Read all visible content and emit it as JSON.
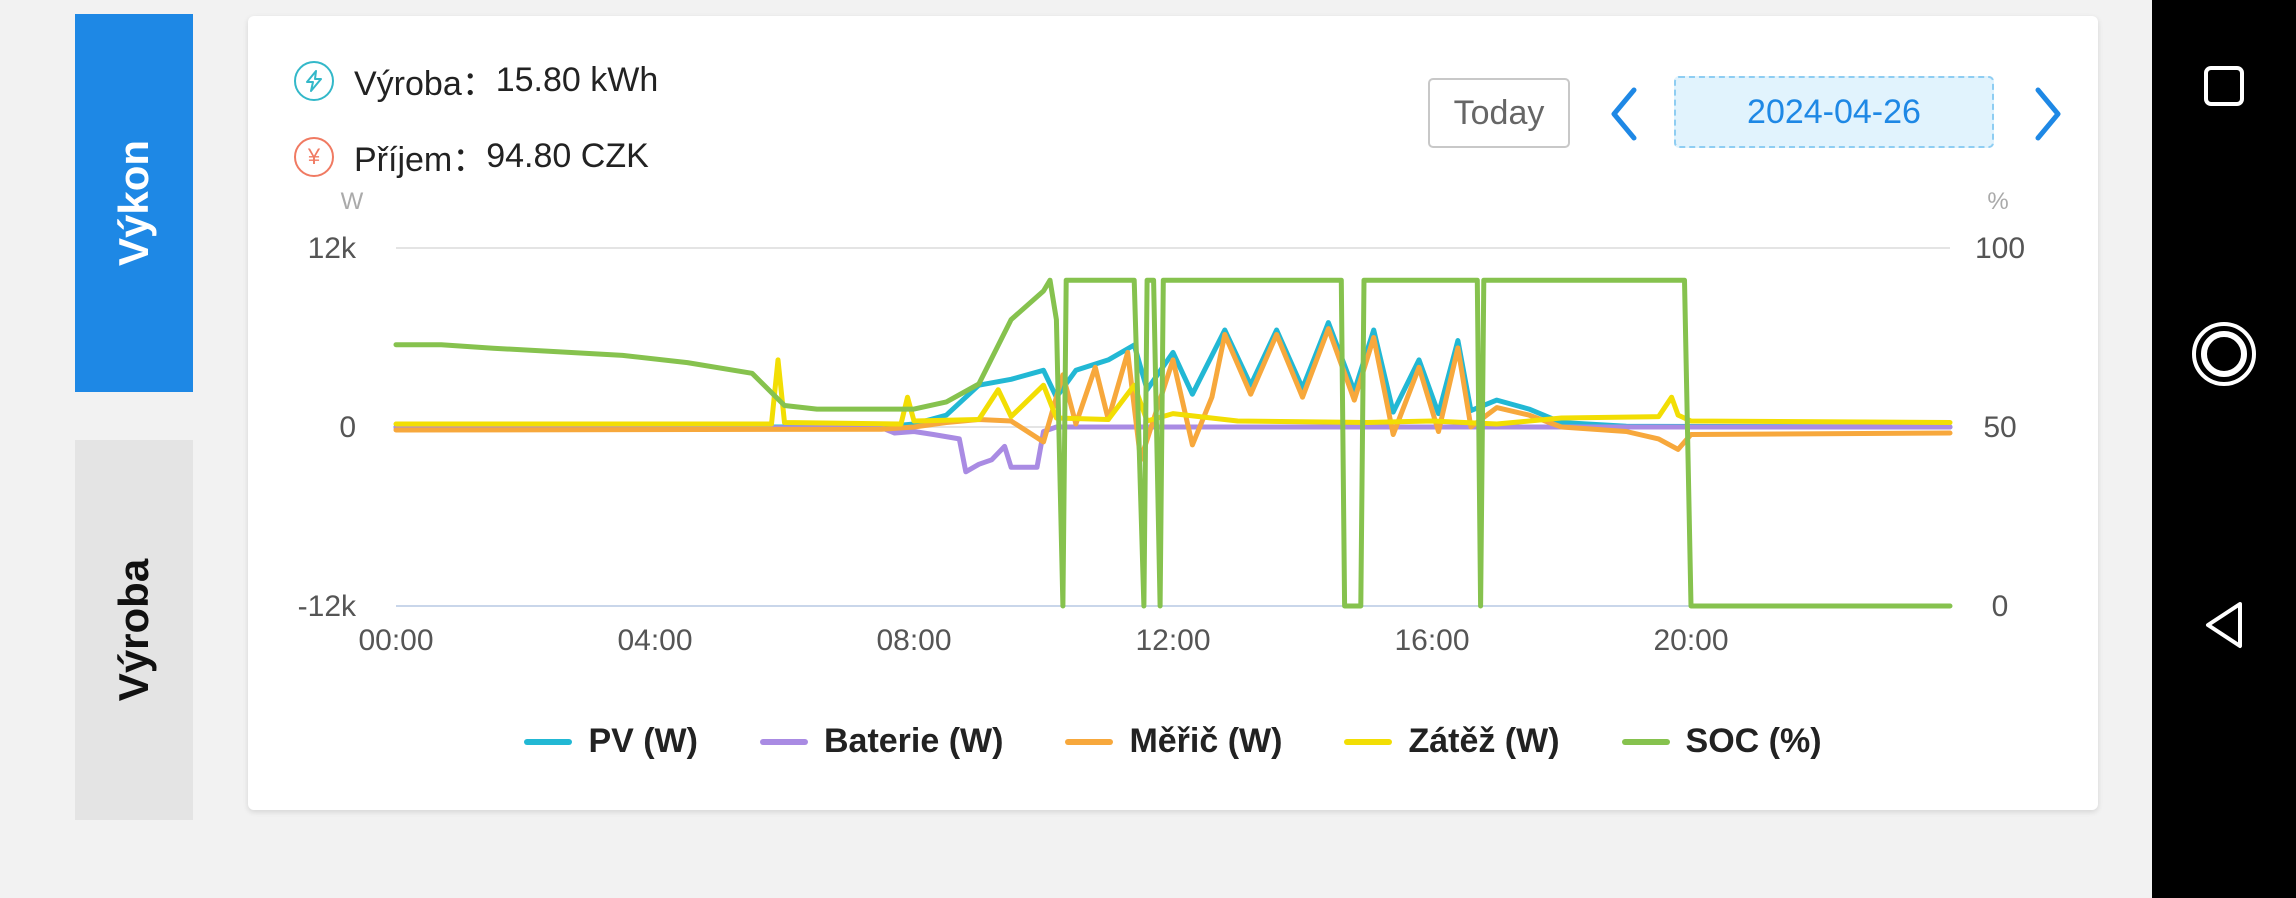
{
  "tabs": {
    "power": "Výkon",
    "production": "Výroba"
  },
  "stats": {
    "production_label": "Výroba：",
    "production_value": "15.80 kWh",
    "income_label": "Příjem：",
    "income_value": "94.80 CZK",
    "production_icon": "lightning-bolt-icon",
    "income_icon": "yen-icon"
  },
  "date_nav": {
    "today_label": "Today",
    "date": "2024-04-26"
  },
  "colors": {
    "accent": "#1e88e5",
    "pv": "#22b8d4",
    "battery": "#a98be3",
    "meter": "#f7a83c",
    "load": "#f2de04",
    "soc": "#86c24e"
  },
  "chart_data": {
    "type": "line",
    "y_unit": "W",
    "y2_unit": "%",
    "ylim": [
      -12000,
      12000
    ],
    "y2lim": [
      0,
      100
    ],
    "y_ticks": [
      "12k",
      "0",
      "-12k"
    ],
    "y2_ticks": [
      "100",
      "50",
      "0"
    ],
    "x_ticks": [
      "00:00",
      "04:00",
      "08:00",
      "12:00",
      "16:00",
      "20:00"
    ],
    "grid": "horizontal",
    "legend_position": "bottom",
    "series": [
      {
        "name": "PV (W)",
        "axis": "left",
        "color": "#22b8d4",
        "points": [
          [
            0,
            0
          ],
          [
            7.5,
            0
          ],
          [
            8,
            200
          ],
          [
            8.5,
            800
          ],
          [
            9,
            2800
          ],
          [
            9.5,
            3200
          ],
          [
            10,
            3800
          ],
          [
            10.2,
            2000
          ],
          [
            10.5,
            3800
          ],
          [
            11,
            4500
          ],
          [
            11.4,
            5500
          ],
          [
            11.6,
            2500
          ],
          [
            12,
            5000
          ],
          [
            12.3,
            2200
          ],
          [
            12.8,
            6500
          ],
          [
            13.2,
            2800
          ],
          [
            13.6,
            6500
          ],
          [
            14,
            2600
          ],
          [
            14.4,
            7000
          ],
          [
            14.8,
            2400
          ],
          [
            15.1,
            6500
          ],
          [
            15.4,
            1000
          ],
          [
            15.8,
            4500
          ],
          [
            16.1,
            900
          ],
          [
            16.4,
            5800
          ],
          [
            16.6,
            1100
          ],
          [
            17,
            1800
          ],
          [
            17.5,
            1200
          ],
          [
            18,
            300
          ],
          [
            19,
            50
          ],
          [
            24,
            0
          ]
        ]
      },
      {
        "name": "Baterie (W)",
        "axis": "left",
        "color": "#a98be3",
        "points": [
          [
            0,
            -50
          ],
          [
            7.5,
            -50
          ],
          [
            7.7,
            -400
          ],
          [
            8,
            -300
          ],
          [
            8.3,
            -500
          ],
          [
            8.7,
            -800
          ],
          [
            8.8,
            -3000
          ],
          [
            9,
            -2500
          ],
          [
            9.2,
            -2200
          ],
          [
            9.4,
            -1300
          ],
          [
            9.5,
            -2700
          ],
          [
            9.7,
            -2700
          ],
          [
            9.9,
            -2700
          ],
          [
            10,
            -300
          ],
          [
            10.2,
            0
          ],
          [
            24,
            0
          ]
        ]
      },
      {
        "name": "Měřič (W)",
        "axis": "left",
        "color": "#f7a83c",
        "points": [
          [
            0,
            -200
          ],
          [
            7.5,
            -150
          ],
          [
            8,
            0
          ],
          [
            8.5,
            300
          ],
          [
            9,
            500
          ],
          [
            9.5,
            400
          ],
          [
            10,
            -1000
          ],
          [
            10.3,
            3500
          ],
          [
            10.5,
            200
          ],
          [
            10.8,
            4000
          ],
          [
            11,
            500
          ],
          [
            11.3,
            5000
          ],
          [
            11.5,
            -2200
          ],
          [
            11.7,
            500
          ],
          [
            12,
            4500
          ],
          [
            12.3,
            -1200
          ],
          [
            12.6,
            2000
          ],
          [
            12.8,
            6200
          ],
          [
            13.2,
            2200
          ],
          [
            13.6,
            6200
          ],
          [
            14,
            2000
          ],
          [
            14.4,
            6600
          ],
          [
            14.8,
            1800
          ],
          [
            15.1,
            6000
          ],
          [
            15.4,
            -500
          ],
          [
            15.8,
            4000
          ],
          [
            16.1,
            -300
          ],
          [
            16.4,
            5300
          ],
          [
            16.6,
            0
          ],
          [
            17,
            1300
          ],
          [
            17.5,
            800
          ],
          [
            18,
            0
          ],
          [
            19,
            -300
          ],
          [
            19.5,
            -800
          ],
          [
            19.8,
            -1500
          ],
          [
            20,
            -500
          ],
          [
            24,
            -400
          ]
        ]
      },
      {
        "name": "Zátěž (W)",
        "axis": "left",
        "color": "#f2de04",
        "points": [
          [
            0,
            200
          ],
          [
            5.8,
            200
          ],
          [
            5.9,
            4500
          ],
          [
            6,
            300
          ],
          [
            7.8,
            200
          ],
          [
            7.9,
            2000
          ],
          [
            8,
            400
          ],
          [
            9,
            500
          ],
          [
            9.3,
            2500
          ],
          [
            9.5,
            700
          ],
          [
            10,
            2800
          ],
          [
            10.2,
            600
          ],
          [
            11,
            500
          ],
          [
            11.4,
            2800
          ],
          [
            11.6,
            400
          ],
          [
            12,
            900
          ],
          [
            13,
            400
          ],
          [
            15,
            300
          ],
          [
            16,
            400
          ],
          [
            17,
            200
          ],
          [
            18,
            600
          ],
          [
            19.5,
            700
          ],
          [
            19.7,
            2000
          ],
          [
            19.8,
            800
          ],
          [
            20,
            400
          ],
          [
            24,
            300
          ]
        ]
      },
      {
        "name": "SOC (%)",
        "axis": "right",
        "color": "#86c24e",
        "points": [
          [
            0,
            73
          ],
          [
            0.7,
            73
          ],
          [
            1.5,
            72
          ],
          [
            2.5,
            71
          ],
          [
            3.5,
            70
          ],
          [
            4.5,
            68
          ],
          [
            5.5,
            65
          ],
          [
            6,
            56
          ],
          [
            6.5,
            55
          ],
          [
            7.5,
            55
          ],
          [
            8,
            55
          ],
          [
            8.5,
            57
          ],
          [
            9,
            62
          ],
          [
            9.5,
            80
          ],
          [
            10,
            88
          ],
          [
            10.1,
            91
          ],
          [
            10.2,
            80
          ],
          [
            10.3,
            0
          ],
          [
            10.35,
            91
          ],
          [
            11.3,
            91
          ],
          [
            11.4,
            91
          ],
          [
            11.55,
            0
          ],
          [
            11.6,
            91
          ],
          [
            11.7,
            91
          ],
          [
            11.8,
            0
          ],
          [
            11.85,
            91
          ],
          [
            14.6,
            91
          ],
          [
            14.65,
            0
          ],
          [
            14.9,
            0
          ],
          [
            14.95,
            91
          ],
          [
            16.7,
            91
          ],
          [
            16.75,
            0
          ],
          [
            16.8,
            91
          ],
          [
            19.9,
            91
          ],
          [
            20,
            0
          ],
          [
            24,
            0
          ]
        ]
      }
    ]
  }
}
